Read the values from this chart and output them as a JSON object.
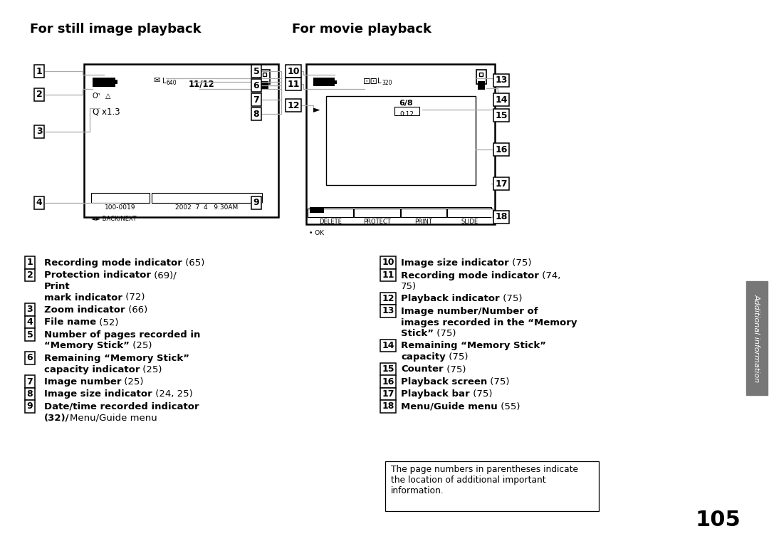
{
  "title_left": "For still image playback",
  "title_right": "For movie playback",
  "bg_color": "#ffffff",
  "page_number": "105",
  "sidebar_text": "Additional information",
  "note_text": "The page numbers in parentheses indicate\nthe location of additional important\ninformation."
}
